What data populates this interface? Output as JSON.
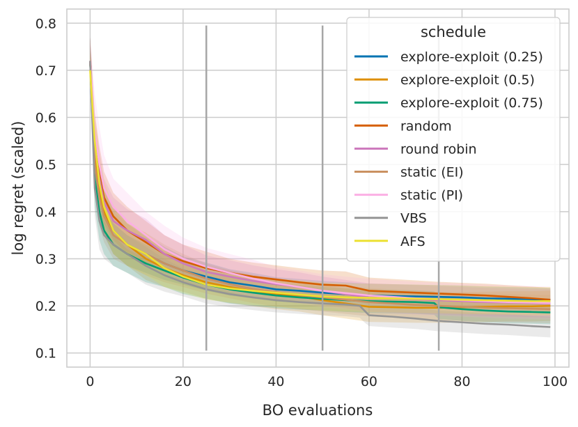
{
  "chart_data": {
    "type": "line",
    "xlabel": "BO evaluations",
    "ylabel": "log regret (scaled)",
    "xlim": [
      -5,
      103
    ],
    "ylim": [
      0.07,
      0.83
    ],
    "xticks": [
      0,
      20,
      40,
      60,
      80,
      100
    ],
    "yticks": [
      0.1,
      0.2,
      0.3,
      0.4,
      0.5,
      0.6,
      0.7,
      0.8
    ],
    "xtick_labels": [
      "0",
      "20",
      "40",
      "60",
      "80",
      "100"
    ],
    "ytick_labels": [
      "0.1",
      "0.2",
      "0.3",
      "0.4",
      "0.5",
      "0.6",
      "0.7",
      "0.8"
    ],
    "grid": true,
    "legend_title": "schedule",
    "legend_position": "top-right",
    "vertical_markers": [
      {
        "x": 25,
        "y_from": 0.105,
        "y_to": 0.795
      },
      {
        "x": 50,
        "y_from": 0.105,
        "y_to": 0.795
      },
      {
        "x": 75,
        "y_from": 0.105,
        "y_to": 0.795
      }
    ],
    "series": [
      {
        "name": "explore-exploit (0.25)",
        "color": "#0173b2",
        "x": [
          0,
          1,
          2,
          3,
          5,
          8,
          12,
          16,
          20,
          25,
          30,
          35,
          40,
          45,
          50,
          55,
          60,
          65,
          70,
          75,
          80,
          85,
          90,
          95,
          99
        ],
        "y": [
          0.72,
          0.52,
          0.44,
          0.4,
          0.36,
          0.33,
          0.31,
          0.29,
          0.275,
          0.262,
          0.25,
          0.243,
          0.235,
          0.232,
          0.228,
          0.225,
          0.222,
          0.221,
          0.22,
          0.219,
          0.218,
          0.216,
          0.215,
          0.214,
          0.213
        ],
        "band": [
          0.05,
          0.06,
          0.06,
          0.05,
          0.05,
          0.045,
          0.04,
          0.035,
          0.03,
          0.03,
          0.028,
          0.027,
          0.026,
          0.025,
          0.025,
          0.025,
          0.025,
          0.025,
          0.025,
          0.025,
          0.025,
          0.025,
          0.025,
          0.025,
          0.025
        ]
      },
      {
        "name": "explore-exploit (0.5)",
        "color": "#de8f05",
        "x": [
          0,
          1,
          2,
          3,
          5,
          8,
          12,
          16,
          20,
          25,
          30,
          35,
          40,
          45,
          50,
          55,
          60,
          65,
          70,
          75,
          80,
          85,
          90,
          95,
          99
        ],
        "y": [
          0.72,
          0.53,
          0.45,
          0.4,
          0.36,
          0.33,
          0.3,
          0.28,
          0.265,
          0.25,
          0.24,
          0.232,
          0.225,
          0.22,
          0.212,
          0.205,
          0.198,
          0.197,
          0.196,
          0.196,
          0.197,
          0.198,
          0.199,
          0.199,
          0.2
        ],
        "band": [
          0.05,
          0.06,
          0.06,
          0.05,
          0.05,
          0.045,
          0.045,
          0.04,
          0.035,
          0.035,
          0.034,
          0.033,
          0.032,
          0.032,
          0.032,
          0.032,
          0.032,
          0.032,
          0.032,
          0.032,
          0.032,
          0.032,
          0.032,
          0.032,
          0.032
        ]
      },
      {
        "name": "explore-exploit (0.75)",
        "color": "#029e73",
        "x": [
          0,
          1,
          2,
          3,
          5,
          8,
          12,
          16,
          20,
          25,
          30,
          35,
          40,
          45,
          50,
          55,
          60,
          65,
          70,
          74,
          75,
          80,
          85,
          90,
          95,
          99
        ],
        "y": [
          0.72,
          0.47,
          0.4,
          0.36,
          0.33,
          0.31,
          0.29,
          0.275,
          0.26,
          0.245,
          0.235,
          0.228,
          0.222,
          0.218,
          0.215,
          0.212,
          0.21,
          0.209,
          0.208,
          0.206,
          0.197,
          0.193,
          0.19,
          0.188,
          0.187,
          0.186
        ],
        "band": [
          0.05,
          0.06,
          0.06,
          0.05,
          0.045,
          0.04,
          0.04,
          0.035,
          0.035,
          0.03,
          0.03,
          0.028,
          0.027,
          0.026,
          0.025,
          0.025,
          0.025,
          0.025,
          0.025,
          0.025,
          0.025,
          0.025,
          0.025,
          0.025,
          0.025,
          0.025
        ]
      },
      {
        "name": "random",
        "color": "#d55e00",
        "x": [
          0,
          1,
          2,
          3,
          5,
          8,
          12,
          16,
          20,
          25,
          30,
          35,
          40,
          45,
          50,
          55,
          60,
          65,
          70,
          75,
          80,
          85,
          90,
          95,
          99
        ],
        "y": [
          0.72,
          0.55,
          0.48,
          0.43,
          0.39,
          0.36,
          0.335,
          0.31,
          0.295,
          0.28,
          0.27,
          0.262,
          0.256,
          0.25,
          0.245,
          0.243,
          0.232,
          0.23,
          0.228,
          0.226,
          0.224,
          0.222,
          0.219,
          0.216,
          0.213
        ],
        "band": [
          0.05,
          0.06,
          0.06,
          0.055,
          0.05,
          0.05,
          0.045,
          0.04,
          0.035,
          0.035,
          0.03,
          0.03,
          0.03,
          0.03,
          0.03,
          0.03,
          0.028,
          0.027,
          0.026,
          0.025,
          0.025,
          0.025,
          0.025,
          0.025,
          0.025
        ]
      },
      {
        "name": "round robin",
        "color": "#cc78bc",
        "x": [
          0,
          1,
          2,
          3,
          5,
          8,
          12,
          16,
          20,
          25,
          30,
          35,
          40,
          45,
          50,
          55,
          60,
          65,
          70,
          75,
          80,
          85,
          90,
          95,
          99
        ],
        "y": [
          0.72,
          0.54,
          0.47,
          0.42,
          0.38,
          0.36,
          0.34,
          0.31,
          0.29,
          0.272,
          0.262,
          0.253,
          0.246,
          0.24,
          0.232,
          0.225,
          0.218,
          0.216,
          0.214,
          0.212,
          0.21,
          0.208,
          0.207,
          0.206,
          0.205
        ],
        "band": [
          0.05,
          0.06,
          0.06,
          0.05,
          0.05,
          0.045,
          0.045,
          0.04,
          0.04,
          0.035,
          0.035,
          0.033,
          0.032,
          0.031,
          0.03,
          0.03,
          0.03,
          0.03,
          0.03,
          0.03,
          0.03,
          0.03,
          0.03,
          0.03,
          0.03
        ]
      },
      {
        "name": "static (EI)",
        "color": "#ca9161",
        "x": [
          0,
          1,
          2,
          3,
          5,
          8,
          12,
          16,
          20,
          25,
          30,
          35,
          40,
          45,
          50,
          55,
          60,
          65,
          70,
          75,
          80,
          85,
          90,
          95,
          99
        ],
        "y": [
          0.72,
          0.5,
          0.43,
          0.39,
          0.35,
          0.33,
          0.31,
          0.29,
          0.275,
          0.258,
          0.246,
          0.236,
          0.229,
          0.223,
          0.218,
          0.213,
          0.208,
          0.205,
          0.202,
          0.2,
          0.198,
          0.196,
          0.195,
          0.194,
          0.193
        ],
        "band": [
          0.05,
          0.06,
          0.06,
          0.055,
          0.05,
          0.045,
          0.045,
          0.04,
          0.035,
          0.032,
          0.03,
          0.03,
          0.03,
          0.03,
          0.03,
          0.03,
          0.03,
          0.03,
          0.03,
          0.03,
          0.03,
          0.03,
          0.03,
          0.03,
          0.03
        ]
      },
      {
        "name": "static (PI)",
        "color": "#fbafe4",
        "x": [
          0,
          1,
          2,
          3,
          5,
          8,
          12,
          16,
          20,
          25,
          30,
          35,
          40,
          45,
          50,
          55,
          60,
          65,
          70,
          75,
          80,
          85,
          90,
          95,
          99
        ],
        "y": [
          0.72,
          0.57,
          0.5,
          0.45,
          0.41,
          0.38,
          0.35,
          0.32,
          0.3,
          0.283,
          0.27,
          0.258,
          0.248,
          0.24,
          0.232,
          0.227,
          0.222,
          0.219,
          0.216,
          0.214,
          0.212,
          0.21,
          0.208,
          0.207,
          0.206
        ],
        "band": [
          0.05,
          0.08,
          0.08,
          0.07,
          0.06,
          0.06,
          0.05,
          0.05,
          0.045,
          0.04,
          0.04,
          0.04,
          0.035,
          0.035,
          0.035,
          0.035,
          0.035,
          0.035,
          0.035,
          0.035,
          0.035,
          0.035,
          0.035,
          0.035,
          0.035
        ]
      },
      {
        "name": "VBS",
        "color": "#949494",
        "x": [
          0,
          1,
          2,
          3,
          5,
          8,
          12,
          16,
          20,
          25,
          30,
          35,
          40,
          45,
          50,
          55,
          58,
          59,
          60,
          65,
          70,
          75,
          80,
          85,
          90,
          95,
          99
        ],
        "y": [
          0.72,
          0.45,
          0.38,
          0.35,
          0.33,
          0.31,
          0.285,
          0.265,
          0.25,
          0.235,
          0.225,
          0.218,
          0.212,
          0.208,
          0.205,
          0.203,
          0.2,
          0.19,
          0.18,
          0.177,
          0.173,
          0.168,
          0.165,
          0.162,
          0.16,
          0.157,
          0.155
        ],
        "band": [
          0.05,
          0.06,
          0.06,
          0.05,
          0.045,
          0.04,
          0.04,
          0.035,
          0.03,
          0.03,
          0.028,
          0.027,
          0.026,
          0.025,
          0.025,
          0.025,
          0.025,
          0.025,
          0.023,
          0.023,
          0.022,
          0.022,
          0.022,
          0.022,
          0.022,
          0.022,
          0.022
        ]
      },
      {
        "name": "AFS",
        "color": "#ece133",
        "x": [
          0,
          1,
          2,
          3,
          5,
          8,
          12,
          16,
          20,
          25,
          30,
          35,
          40,
          45,
          50,
          55,
          60,
          65,
          70,
          75,
          80,
          85,
          90,
          95,
          99
        ],
        "y": [
          0.7,
          0.55,
          0.46,
          0.41,
          0.36,
          0.33,
          0.31,
          0.28,
          0.262,
          0.245,
          0.237,
          0.232,
          0.228,
          0.224,
          0.22,
          0.218,
          0.217,
          0.216,
          0.215,
          0.214,
          0.213,
          0.212,
          0.211,
          0.21,
          0.21
        ],
        "band": [
          0.04,
          0.06,
          0.06,
          0.055,
          0.05,
          0.045,
          0.045,
          0.04,
          0.035,
          0.032,
          0.03,
          0.03,
          0.03,
          0.03,
          0.03,
          0.03,
          0.03,
          0.03,
          0.03,
          0.03,
          0.03,
          0.03,
          0.03,
          0.03,
          0.03
        ]
      }
    ]
  }
}
